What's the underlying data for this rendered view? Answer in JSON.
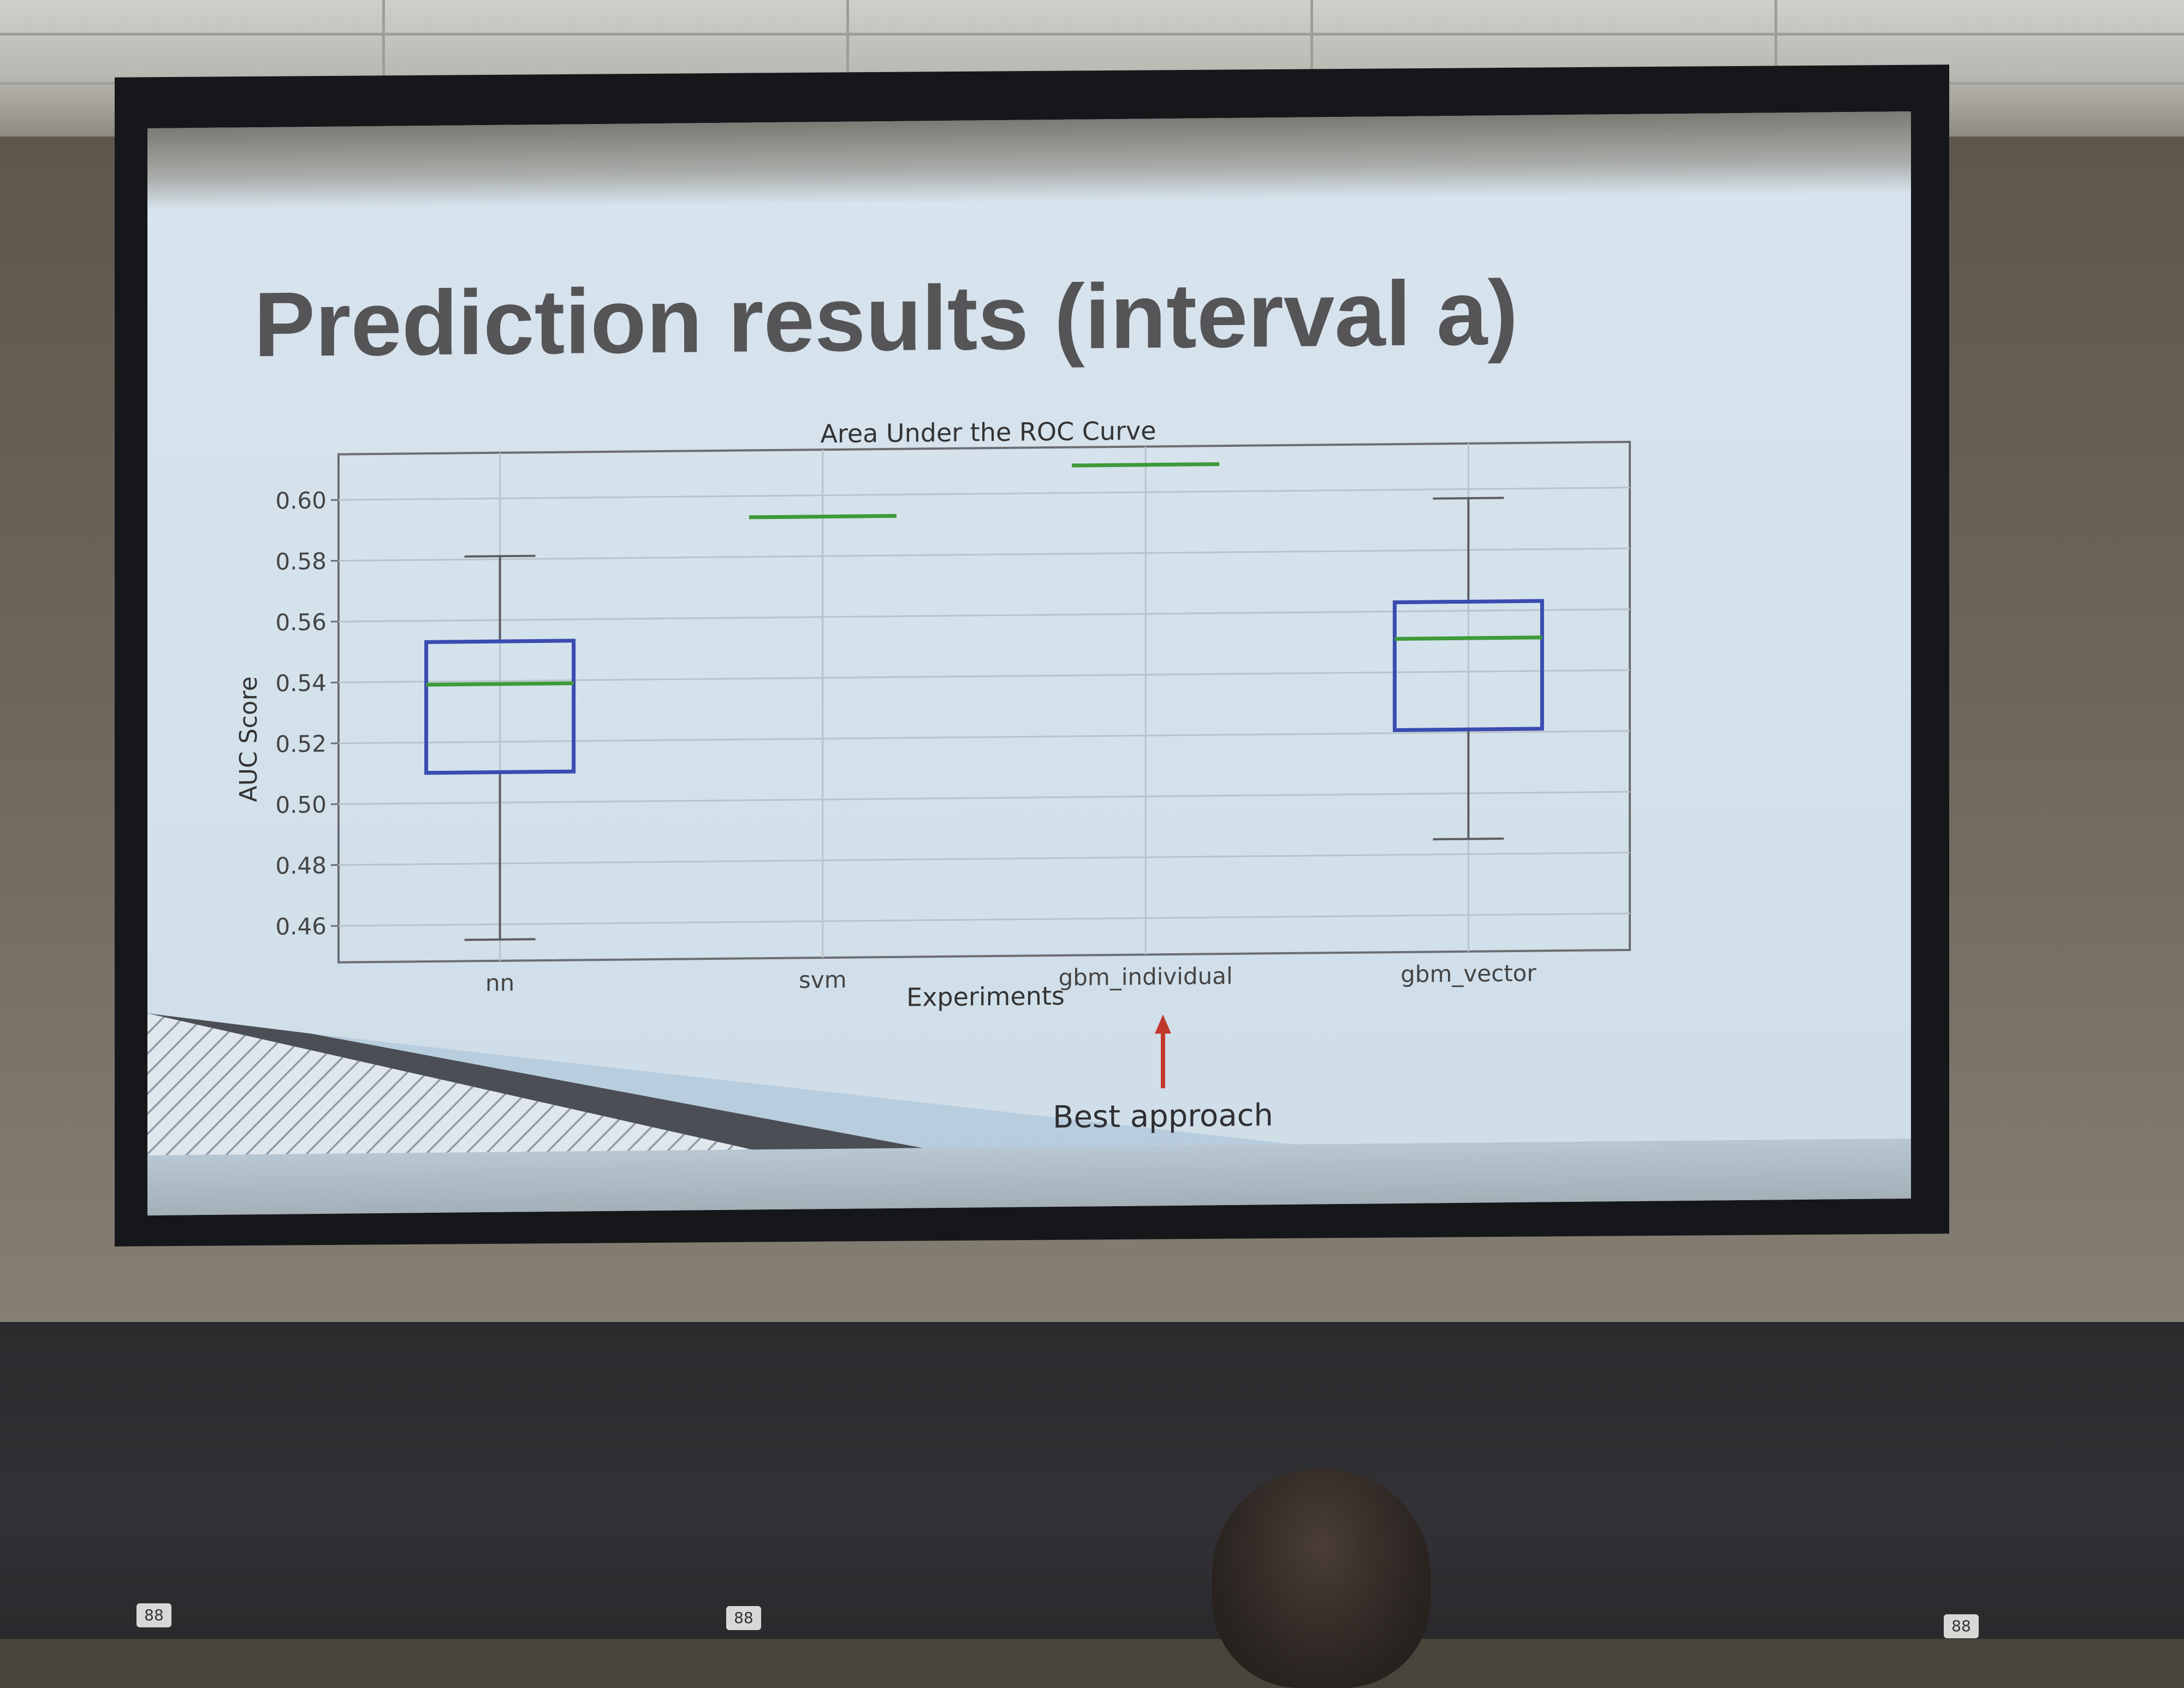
{
  "slide": {
    "title": "Prediction results (interval a)",
    "annotation": "Best approach"
  },
  "outlets": [
    "88",
    "88",
    "88"
  ],
  "colors": {
    "box": "#3a4cb0",
    "median": "#3f9a3a",
    "whisker": "#5c5e62",
    "arrow": "#c0392b"
  },
  "chart_data": {
    "type": "box",
    "title": "Area Under the ROC Curve",
    "xlabel": "Experiments",
    "ylabel": "AUC Score",
    "categories": [
      "nn",
      "svm",
      "gbm_individual",
      "gbm_vector"
    ],
    "ylim": [
      0.448,
      0.615
    ],
    "yticks": [
      0.46,
      0.48,
      0.5,
      0.52,
      0.54,
      0.56,
      0.58,
      0.6
    ],
    "ytick_labels": [
      "0.46",
      "0.48",
      "0.50",
      "0.52",
      "0.54",
      "0.56",
      "0.58",
      "0.60"
    ],
    "grid": true,
    "series": [
      {
        "category": "nn",
        "min": 0.455,
        "q1": 0.51,
        "median": 0.539,
        "q3": 0.553,
        "max": 0.581
      },
      {
        "category": "svm",
        "min": 0.593,
        "q1": 0.593,
        "median": 0.593,
        "q3": 0.593,
        "max": 0.593
      },
      {
        "category": "gbm_individual",
        "min": 0.609,
        "q1": 0.609,
        "median": 0.609,
        "q3": 0.609,
        "max": 0.609
      },
      {
        "category": "gbm_vector",
        "min": 0.485,
        "q1": 0.521,
        "median": 0.551,
        "q3": 0.563,
        "max": 0.597
      }
    ],
    "highlight": "gbm_individual"
  }
}
